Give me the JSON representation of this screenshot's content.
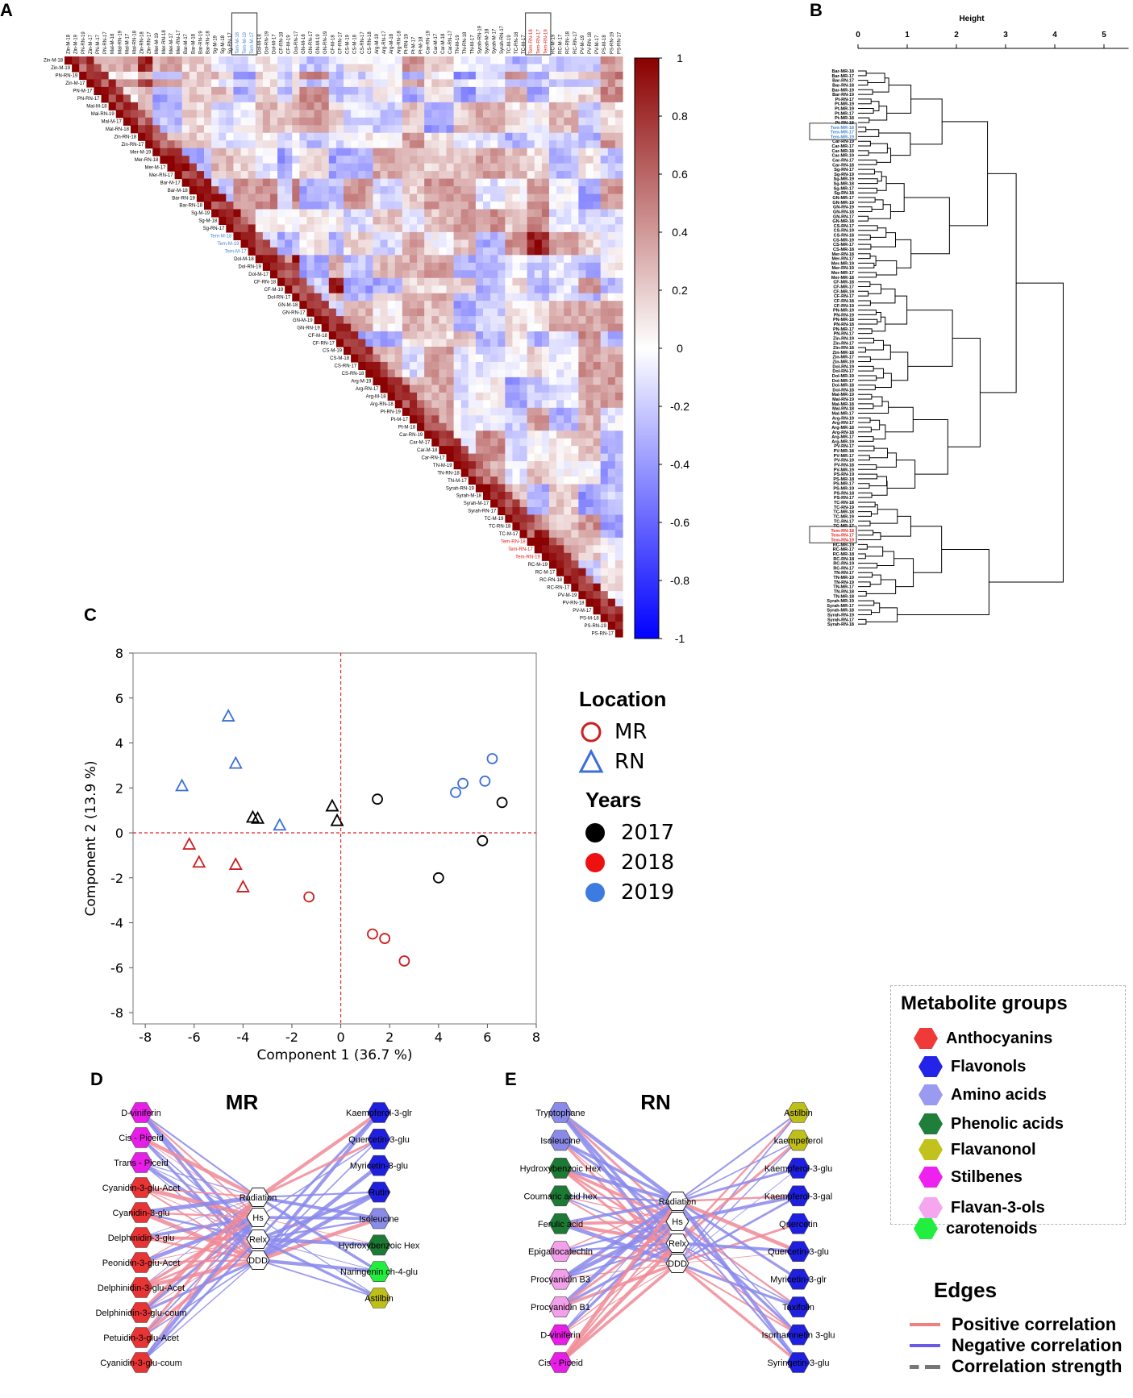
{
  "panels": {
    "a": "A",
    "b": "B",
    "c": "C",
    "d": "D",
    "e": "E"
  },
  "chart_data": [
    {
      "type": "heatmap",
      "panel": "A",
      "title": "",
      "colorbar_ticks": [
        "1",
        "0.8",
        "0.6",
        "0.4",
        "0.2",
        "0",
        "-0.2",
        "-0.4",
        "-0.6",
        "-0.8",
        "-1"
      ],
      "colorbar_range": [
        -1,
        1
      ],
      "colors": {
        "high": "#8b0000",
        "mid": "#ffffff",
        "low": "#0000ff"
      },
      "labels": [
        "Zin-M-18",
        "Zin-M-19",
        "PN-RN-19",
        "Zin-M-17",
        "PN-M-17",
        "PN-RN-17",
        "Mal-M-18",
        "Mal-RN-19",
        "Mal-M-17",
        "Mal-RN-18",
        "Zin-RN-18",
        "Zin-RN-17",
        "Mer-M-19",
        "Mer-RN-18",
        "Mer-M-17",
        "Mer-RN-17",
        "Bar-M-17",
        "Bar-M-18",
        "Bar-RN-19",
        "Bar-RN-18",
        "Sg-M-19",
        "Sg-M-18",
        "Sg-RN-17",
        "Tem-M-18",
        "Tem-M-19",
        "Tem-M-17",
        "Dol-M-18",
        "Dol-RN-19",
        "Dol-M-17",
        "CF-RN-18",
        "CF-M-19",
        "Dol-RN-17",
        "GN-M-18",
        "GN-RN-17",
        "GN-M-19",
        "GN-RN-19",
        "CF-M-18",
        "CF-RN-17",
        "CS-M-19",
        "CS-M-18",
        "CS-RN-17",
        "CS-RN-18",
        "Arg-M-19",
        "Arg-RN-17",
        "Arg-M-18",
        "Arg-RN-18",
        "Pt-RN-19",
        "Pt-M-17",
        "Pt-M-18",
        "Car-RN-19",
        "Car-M-17",
        "Car-M-18",
        "Car-RN-17",
        "TN-M-19",
        "TN-RN-18",
        "TN-M-17",
        "Syrah-RN-19",
        "Syrah-M-18",
        "Syrah-M-17",
        "Syrah-RN-17",
        "TC-M-19",
        "TC-RN-18",
        "TC-M-17",
        "Tem-RN-18",
        "Tem-RN-17",
        "Tem-RN-19",
        "RC-M-19",
        "RC-M-17",
        "RC-RN-18",
        "RC-RN-17",
        "PV-M-19",
        "PV-RN-18",
        "PV-M-17",
        "PS-M-18",
        "PS-RN-19",
        "PS-RN-17"
      ],
      "highlighted_blue": [
        "Tem-M-18",
        "Tem-M-19",
        "Tem-M-17"
      ],
      "highlighted_red": [
        "Tem-RN-18",
        "Tem-RN-17",
        "Tem-RN-19"
      ],
      "note": "Pairwise correlation matrix of samples (upper triangle)."
    },
    {
      "type": "dendrogram",
      "panel": "B",
      "xlabel": "Height",
      "x_ticks": [
        "0",
        "1",
        "2",
        "3",
        "4",
        "5"
      ],
      "xlim": [
        0,
        5.5
      ],
      "leaves": [
        "Bar-MR-18",
        "Bar-MR-17",
        "Bar-RN-17",
        "Bar-RN-18",
        "Bar-MR-19",
        "Bar-RN-19",
        "Pt-RN-17",
        "Pt-MR-19",
        "Pt-MR-19",
        "Pt-MR-17",
        "Pt-MR-18",
        "Pt-RN-18",
        "Tem-MR-18",
        "Tem-MR-17",
        "Tem-MR-19",
        "Car-RN-19",
        "Car-MR-17",
        "Car-MR-18",
        "Car-MR-19",
        "Car-RN-17",
        "Car-RN-18",
        "Sg-RN-17",
        "Sg-RN-19",
        "Sg-MR-19",
        "Sg-MR-18",
        "Sg-MR-17",
        "Sg-RN-18",
        "GN-MR-17",
        "GN-MR-19",
        "GN-RN-19",
        "GN-RN-18",
        "GN-RN-17",
        "GN-MR-18",
        "CS-RN-17",
        "CS-RN-19",
        "CS-RN-18",
        "CS-MR-19",
        "CS-MR-17",
        "CS-MR-18",
        "Mer-RN-18",
        "Mer-RN-17",
        "Mer-MR-19",
        "Mer-RN-19",
        "Mer-MR-17",
        "Mer-MR-18",
        "CF-MR-18",
        "CF-MR-17",
        "CF-MR-19",
        "CF-RN-17",
        "CF-RN-18",
        "CF-RN-19",
        "PN-MR-19",
        "PN-RN-19",
        "PN-MR-18",
        "PN-RN-18",
        "PN-MR-17",
        "PN-RN-17",
        "Zin-RN-19",
        "Zin-RN-17",
        "Zin-RN-18",
        "Zin-MR-18",
        "Zin-MR-17",
        "Zin-MR-19",
        "Dol-RN-19",
        "Dol-RN-17",
        "Dol-MR-19",
        "Dol-MR-17",
        "Dol-MR-18",
        "Dol-RN-18",
        "Mal-MR-19",
        "Mal-RN-19",
        "Mal-MR-18",
        "Mal-RN-18",
        "Mal-MR-17",
        "Arg-RN-19",
        "Arg-RN-17",
        "Arg-MR-18",
        "Arg-RN-18",
        "Arg-MR-17",
        "Arg-MR-19",
        "PV-RN-17",
        "PV-MR-18",
        "PV-MR-17",
        "PV-RN-19",
        "PV-RN-18",
        "PV-MR-19",
        "PS-RN-19",
        "PS-MR-18",
        "PS-MR-17",
        "PS-MR-19",
        "PS-RN-18",
        "PS-RN-17",
        "TC-RN-18",
        "TC-RN-19",
        "TC-MR-18",
        "TC-MR-19",
        "TC-RN-17",
        "TC-MR-17",
        "Tem-RN-18",
        "Tem-RN-17",
        "Tem-RN-19",
        "RC-MR-19",
        "RC-MR-17",
        "RC-MR-18",
        "RC-RN-18",
        "RC-RN-19",
        "RC-RN-17",
        "TN-RN-17",
        "TN-MR-19",
        "TN-RN-19",
        "TN-MR-17",
        "TN-RN-18",
        "TN-MR-18",
        "Syrah-MR-19",
        "Syrah-MR-17",
        "Syrah-MR-18",
        "Syrah-RN-19",
        "Syrah-RN-17",
        "Syrah-RN-18"
      ],
      "highlighted_blue": [
        "Tem-MR-18",
        "Tem-MR-17",
        "Tem-MR-19"
      ],
      "highlighted_red": [
        "Tem-RN-18",
        "Tem-RN-17",
        "Tem-RN-19"
      ]
    },
    {
      "type": "scatter",
      "panel": "C",
      "xlabel": "Component 1  (36.7 %)",
      "ylabel": "Component 2  (13.9 %)",
      "xlim": [
        -8.5,
        8
      ],
      "ylim": [
        -8.5,
        8
      ],
      "x_ticks": [
        -8,
        -6,
        -4,
        -2,
        0,
        2,
        4,
        6,
        8
      ],
      "y_ticks": [
        -8,
        -6,
        -4,
        -2,
        0,
        2,
        4,
        6,
        8
      ],
      "points": [
        {
          "x": -4.6,
          "y": 5.2,
          "loc": "RN",
          "year": "2019"
        },
        {
          "x": -4.3,
          "y": 3.1,
          "loc": "RN",
          "year": "2019"
        },
        {
          "x": -6.5,
          "y": 2.1,
          "loc": "RN",
          "year": "2019"
        },
        {
          "x": -2.5,
          "y": 0.35,
          "loc": "RN",
          "year": "2019"
        },
        {
          "x": -3.6,
          "y": 0.7,
          "loc": "RN",
          "year": "2017"
        },
        {
          "x": -3.4,
          "y": 0.65,
          "loc": "RN",
          "year": "2017"
        },
        {
          "x": -0.35,
          "y": 1.2,
          "loc": "RN",
          "year": "2017"
        },
        {
          "x": -0.15,
          "y": 0.55,
          "loc": "RN",
          "year": "2017"
        },
        {
          "x": -6.2,
          "y": -0.5,
          "loc": "RN",
          "year": "2018"
        },
        {
          "x": -5.8,
          "y": -1.3,
          "loc": "RN",
          "year": "2018"
        },
        {
          "x": -4.3,
          "y": -1.4,
          "loc": "RN",
          "year": "2018"
        },
        {
          "x": -4.0,
          "y": -2.4,
          "loc": "RN",
          "year": "2018"
        },
        {
          "x": 1.5,
          "y": 1.5,
          "loc": "MR",
          "year": "2017"
        },
        {
          "x": 6.6,
          "y": 1.35,
          "loc": "MR",
          "year": "2017"
        },
        {
          "x": 5.8,
          "y": -0.35,
          "loc": "MR",
          "year": "2017"
        },
        {
          "x": 4.0,
          "y": -2.0,
          "loc": "MR",
          "year": "2017"
        },
        {
          "x": 6.2,
          "y": 3.3,
          "loc": "MR",
          "year": "2019"
        },
        {
          "x": 5.9,
          "y": 2.3,
          "loc": "MR",
          "year": "2019"
        },
        {
          "x": 5.0,
          "y": 2.2,
          "loc": "MR",
          "year": "2019"
        },
        {
          "x": 4.7,
          "y": 1.8,
          "loc": "MR",
          "year": "2019"
        },
        {
          "x": -1.3,
          "y": -2.85,
          "loc": "MR",
          "year": "2018"
        },
        {
          "x": 1.3,
          "y": -4.5,
          "loc": "MR",
          "year": "2018"
        },
        {
          "x": 1.8,
          "y": -4.7,
          "loc": "MR",
          "year": "2018"
        },
        {
          "x": 2.6,
          "y": -5.7,
          "loc": "MR",
          "year": "2018"
        }
      ],
      "legend_location": {
        "title": "Location",
        "items": [
          "MR",
          "RN"
        ]
      },
      "legend_years": {
        "title": "Years",
        "items": [
          "2017",
          "2018",
          "2019"
        ]
      },
      "year_colors": {
        "2017": "#000000",
        "2018": "#cc1f1f",
        "2019": "#3b6fd8"
      },
      "reference_lines": {
        "x": 0,
        "y": 0,
        "color": "#e0262b"
      }
    },
    {
      "type": "network",
      "panel": "D",
      "title": "MR",
      "hubs": [
        "Radiation",
        "Hs",
        "Relx",
        "DDD"
      ],
      "left_nodes": [
        {
          "label": "D-viniferin",
          "group": "stilbenes"
        },
        {
          "label": "Cis - Piceid",
          "group": "stilbenes"
        },
        {
          "label": "Trans - Piceid",
          "group": "stilbenes"
        },
        {
          "label": "Cyanidin-3-glu-Acet",
          "group": "anthocyanins"
        },
        {
          "label": "Cyanidin-3-glu",
          "group": "anthocyanins"
        },
        {
          "label": "Delphinidin-3-glu",
          "group": "anthocyanins"
        },
        {
          "label": "Peonidin-3-glu-Acet",
          "group": "anthocyanins"
        },
        {
          "label": "Delphinidin-3-glu-Acet",
          "group": "anthocyanins"
        },
        {
          "label": "Delphinidin-3-glu-coum",
          "group": "anthocyanins"
        },
        {
          "label": "Petuidin-3-glu-Acet",
          "group": "anthocyanins"
        },
        {
          "label": "Cyanidin-3-glu-coum",
          "group": "anthocyanins"
        }
      ],
      "right_nodes": [
        {
          "label": "Kaempferol-3-glr",
          "group": "flavonols"
        },
        {
          "label": "Quercetin-3-glu",
          "group": "flavonols"
        },
        {
          "label": "Myricetin-3-glu",
          "group": "flavonols"
        },
        {
          "label": "Rutin",
          "group": "flavonols"
        },
        {
          "label": "Isoleucine",
          "group": "amino"
        },
        {
          "label": "Hydroxybenzoic Hex",
          "group": "phenolic"
        },
        {
          "label": "Naringenin ch-4-glu",
          "group": "carotenoids"
        },
        {
          "label": "Astilbin",
          "group": "flavanonol"
        }
      ]
    },
    {
      "type": "network",
      "panel": "E",
      "title": "RN",
      "hubs": [
        "Radiation",
        "Hs",
        "Relx",
        "DDD"
      ],
      "left_nodes": [
        {
          "label": "Tryptophane",
          "group": "amino"
        },
        {
          "label": "Isoleucine",
          "group": "amino"
        },
        {
          "label": "Hydroxybenzoic Hex",
          "group": "phenolic"
        },
        {
          "label": "Coumaric acid hex",
          "group": "phenolic"
        },
        {
          "label": "Ferulic acid",
          "group": "phenolic"
        },
        {
          "label": "Epigallocatechin",
          "group": "flavan"
        },
        {
          "label": "Procyanidin B3",
          "group": "flavan"
        },
        {
          "label": "Procyanidin B1",
          "group": "flavan"
        },
        {
          "label": "D-viniferin",
          "group": "stilbenes"
        },
        {
          "label": "Cis - Piceid",
          "group": "stilbenes"
        }
      ],
      "right_nodes": [
        {
          "label": "Astilbin",
          "group": "flavanonol"
        },
        {
          "label": "kaempeferol",
          "group": "flavanonol"
        },
        {
          "label": "Kaempferol-3-glu",
          "group": "flavonols"
        },
        {
          "label": "Kaempferol-3-gal",
          "group": "flavonols"
        },
        {
          "label": "Quercetin",
          "group": "flavonols"
        },
        {
          "label": "Quercetin-3-glu",
          "group": "flavonols"
        },
        {
          "label": "Myricetin-3-glr",
          "group": "flavonols"
        },
        {
          "label": "Taxifolin",
          "group": "flavonols"
        },
        {
          "label": "Isorhamnetin 3-glu",
          "group": "flavonols"
        },
        {
          "label": "Syringetin-3-glu",
          "group": "flavonols"
        }
      ]
    }
  ],
  "metabolite_legend": {
    "title": "Metabolite groups",
    "items": [
      {
        "label": "Anthocyanins",
        "color": "#f03a3a"
      },
      {
        "label": "Flavonols",
        "color": "#2424e8"
      },
      {
        "label": "Amino acids",
        "color": "#9a9af0"
      },
      {
        "label": "Phenolic acids",
        "color": "#1f7f3a"
      },
      {
        "label": "Flavanonol",
        "color": "#c2c21c"
      },
      {
        "label": "Stilbenes",
        "color": "#ee22ee"
      },
      {
        "label": "Flavan-3-ols",
        "color": "#f6a6ee"
      },
      {
        "label": "carotenoids",
        "color": "#22ee40"
      }
    ]
  },
  "group_colors": {
    "anthocyanins": "#e83434",
    "flavonols": "#1f1fe0",
    "amino": "#8a8ae8",
    "phenolic": "#1d7a35",
    "flavanonol": "#bfbf1a",
    "stilbenes": "#e81ee8",
    "flavan": "#f3a0ea",
    "carotenoids": "#22ee40"
  },
  "edges_legend": {
    "title": "Edges",
    "items": [
      {
        "label": "Positive correlation",
        "color": "#f08080"
      },
      {
        "label": "Negative correlation",
        "color": "#6a5ae8"
      },
      {
        "label": "Correlation strength",
        "color": "#888888"
      }
    ]
  }
}
